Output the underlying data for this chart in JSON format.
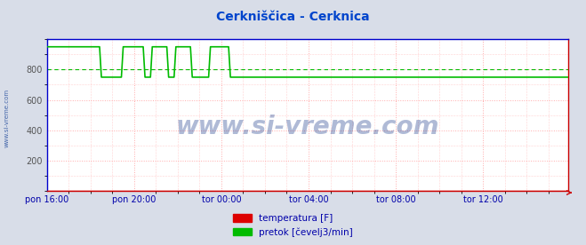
{
  "title": "Cerkniščica - Cerknica",
  "title_color": "#0044cc",
  "bg_color": "#d8dde8",
  "plot_bg_color": "#ffffff",
  "border_left_color": "#0000cc",
  "border_bottom_color": "#cc0000",
  "border_top_color": "#0000cc",
  "border_right_color": "#cc0000",
  "grid_color": "#ffaaaa",
  "grid_style": ":",
  "watermark": "www.si-vreme.com",
  "watermark_color": "#1a3a8a",
  "watermark_alpha": 0.35,
  "xlabel_color": "#0000aa",
  "ylabel_color": "#555555",
  "ylim": [
    0,
    1000
  ],
  "yticks": [
    200,
    400,
    600,
    800
  ],
  "xtick_labels": [
    "pon 16:00",
    "pon 20:00",
    "tor 00:00",
    "tor 04:00",
    "tor 08:00",
    "tor 12:00"
  ],
  "legend_labels": [
    "temperatura [F]",
    "pretok [čevelj3/min]"
  ],
  "legend_colors": [
    "#dd0000",
    "#00bb00"
  ],
  "temp_color": "#cc0000",
  "flow_color": "#00bb00",
  "avg_color": "#00bb00",
  "avg_value": 800,
  "n_points": 288,
  "flow_base": 750,
  "flow_high": 950
}
